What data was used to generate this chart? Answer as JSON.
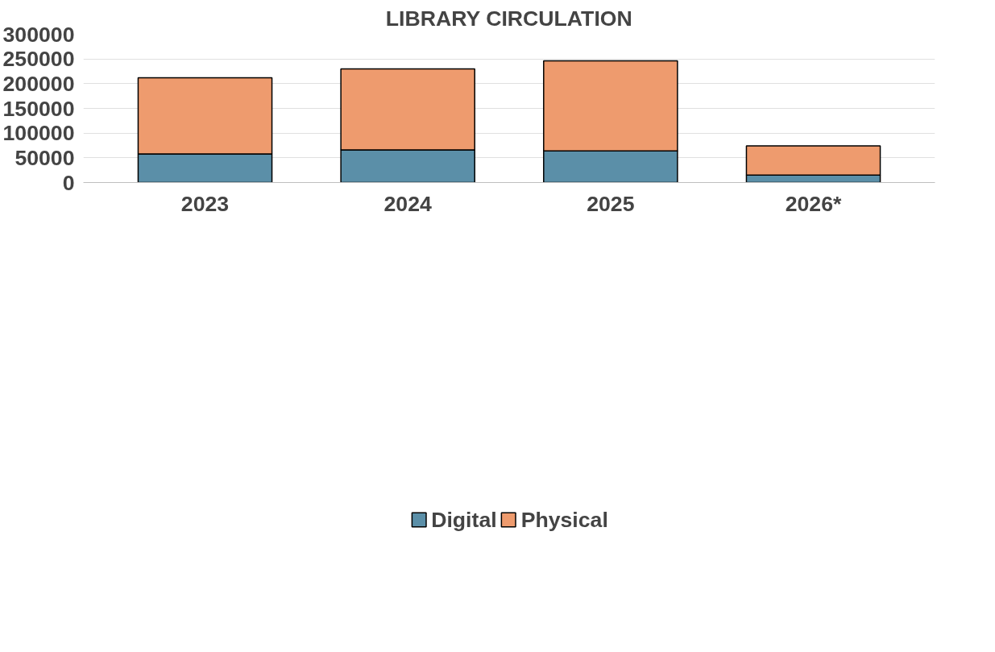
{
  "chart_data": {
    "type": "bar",
    "title": "LIBRARY CIRCULATION",
    "categories": [
      "2023",
      "2024",
      "2025",
      "2026*"
    ],
    "stacked": true,
    "series": [
      {
        "name": "Digital",
        "color": "#5b8fa8",
        "values": [
          58000,
          66000,
          64000,
          15000
        ]
      },
      {
        "name": "Physical",
        "color": "#ee9b6e",
        "values": [
          154000,
          164000,
          182000,
          59000
        ]
      }
    ],
    "ylim": [
      0,
      300000
    ],
    "yticks": [
      0,
      50000,
      100000,
      150000,
      200000,
      250000,
      300000
    ],
    "grid": "y",
    "legend": "bottom"
  }
}
